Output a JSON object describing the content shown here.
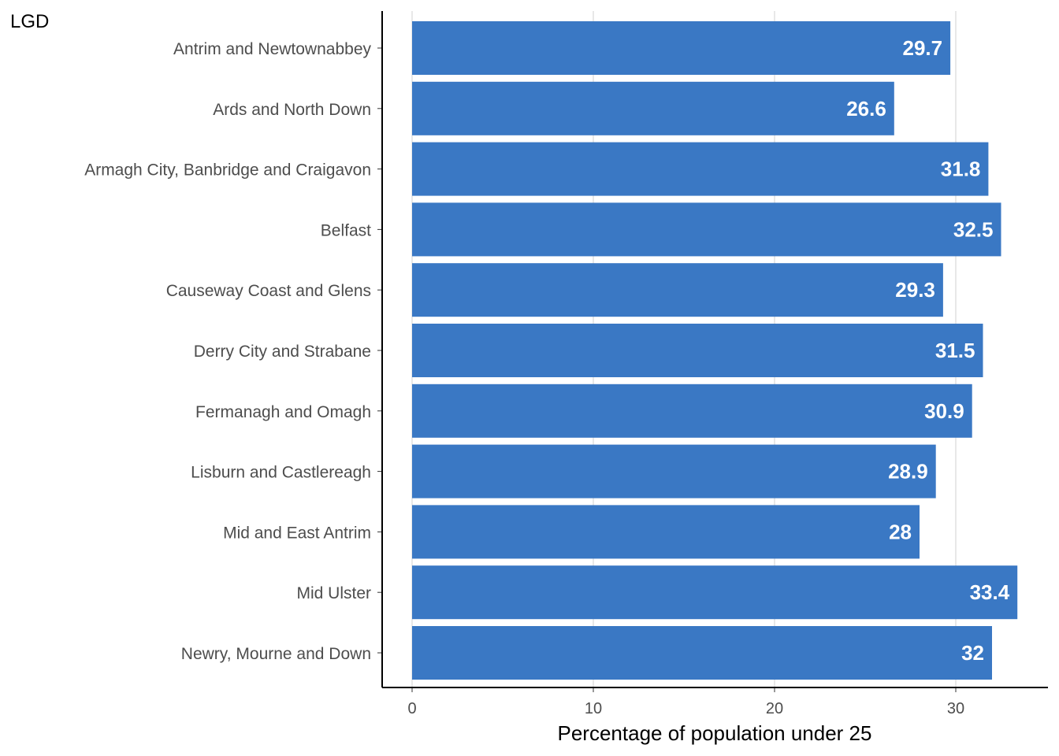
{
  "chart_data": {
    "type": "bar",
    "orientation": "horizontal",
    "categories": [
      "Antrim and Newtownabbey",
      "Ards and North Down",
      "Armagh City, Banbridge and Craigavon",
      "Belfast",
      "Causeway Coast and Glens",
      "Derry City and Strabane",
      "Fermanagh and Omagh",
      "Lisburn and Castlereagh",
      "Mid and East Antrim",
      "Mid Ulster",
      "Newry, Mourne and Down"
    ],
    "values": [
      29.7,
      26.6,
      31.8,
      32.5,
      29.3,
      31.5,
      30.9,
      28.9,
      28,
      33.4,
      32
    ],
    "data_labels": [
      "29.7",
      "26.6",
      "31.8",
      "32.5",
      "29.3",
      "31.5",
      "30.9",
      "28.9",
      "28",
      "33.4",
      "32"
    ],
    "xlabel": "Percentage of population under 25",
    "ylabel": "LGD",
    "xlim": [
      0,
      35
    ],
    "xticks": [
      0,
      10,
      20,
      30
    ],
    "grid": "vertical major",
    "legend": "none",
    "bar_color": "#3a78c4",
    "grid_color": "#d0d0d0",
    "axis_color": "#000000"
  }
}
